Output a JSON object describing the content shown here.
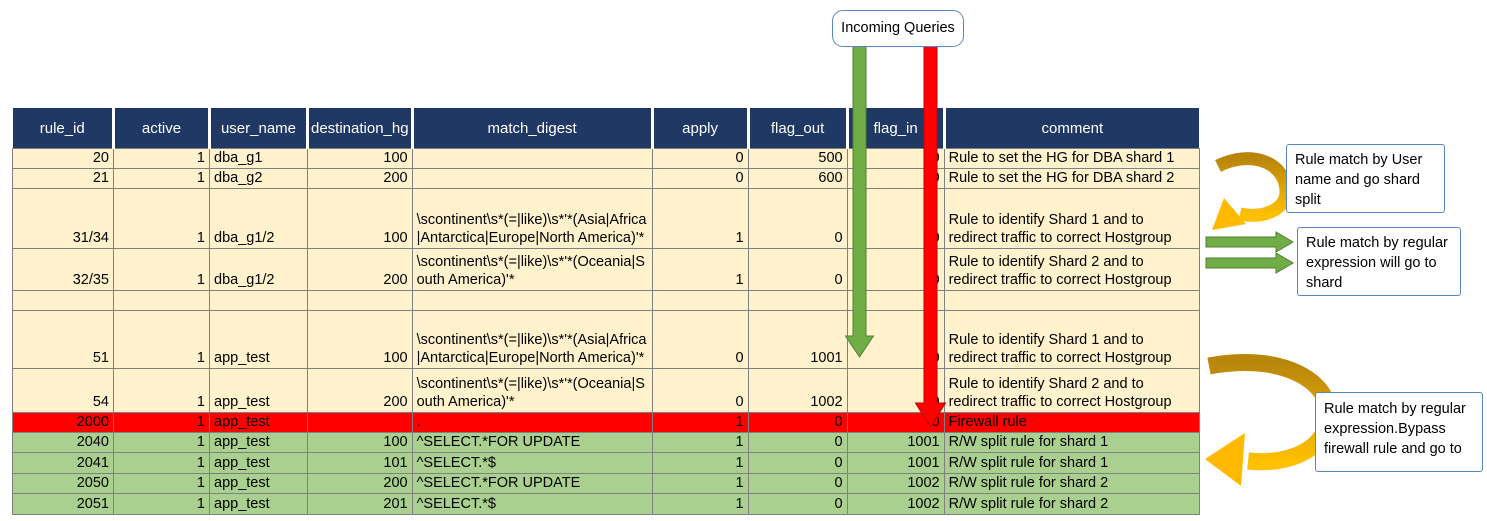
{
  "colors": {
    "header_bg": "#1F3864",
    "header_text": "#FFFFFF",
    "row_cream": "#FFF2CC",
    "row_red": "#FF0000",
    "row_green": "#A9D08E",
    "grid_line": "#808080",
    "arrow_green_fill": "#70AD47",
    "arrow_green_stroke": "#538135",
    "arrow_red_fill": "#FF0000",
    "arrow_red_stroke": "#C00000",
    "arrow_gold_dark": "#B8860B",
    "arrow_gold_bright": "#FFB900",
    "callout_border": "#5B86C5"
  },
  "annotations": {
    "incoming_queries": {
      "label": "Incoming Queries"
    },
    "callout_user_match": {
      "text": "Rule match by User name and go shard split"
    },
    "callout_regex_match": {
      "text": "Rule match by regular expression will go to shard"
    },
    "callout_regex_bypass": {
      "text": "Rule match by regular expression.Bypass firewall rule and go to"
    }
  },
  "table": {
    "columns": [
      "rule_id",
      "active",
      "user_name",
      "destination_hg",
      "match_digest",
      "apply",
      "flag_out",
      "flag_in",
      "comment"
    ],
    "rows": [
      {
        "style": "cream",
        "cells": [
          "20",
          "1",
          "dba_g1",
          "100",
          "",
          "0",
          "500",
          "0",
          "Rule to set the HG for DBA shard 1"
        ]
      },
      {
        "style": "cream",
        "cells": [
          "21",
          "1",
          "dba_g2",
          "200",
          "",
          "0",
          "600",
          "0",
          "Rule to set the HG for DBA shard 2"
        ]
      },
      {
        "style": "cream",
        "cells": [
          "31/34",
          "1",
          "dba_g1/2",
          "100",
          "\\scontinent\\s*(=|like)\\s*'*(Asia|Africa|Antarctica|Europe|North America)'*",
          "1",
          "0",
          "0",
          "Rule to identify Shard 1 and to redirect traffic to correct Hostgroup"
        ]
      },
      {
        "style": "cream",
        "cells": [
          "32/35",
          "1",
          "dba_g1/2",
          "200",
          "\\scontinent\\s*(=|like)\\s*'*(Oceania|South America)'*",
          "1",
          "0",
          "0",
          "Rule to identify Shard 2 and to redirect traffic to correct Hostgroup"
        ]
      },
      {
        "style": "cream",
        "cells": [
          "",
          "",
          "",
          "",
          "",
          "",
          "",
          "",
          ""
        ]
      },
      {
        "style": "cream",
        "cells": [
          "51",
          "1",
          "app_test",
          "100",
          "\\scontinent\\s*(=|like)\\s*'*(Asia|Africa|Antarctica|Europe|North America)'*",
          "0",
          "1001",
          "0",
          "Rule to identify Shard 1 and to redirect traffic to correct Hostgroup"
        ]
      },
      {
        "style": "cream",
        "cells": [
          "54",
          "1",
          "app_test",
          "200",
          "\\scontinent\\s*(=|like)\\s*'*(Oceania|South America)'*",
          "0",
          "1002",
          "0",
          "Rule to identify Shard 2 and to redirect traffic to correct Hostgroup"
        ]
      },
      {
        "style": "red",
        "cells": [
          "2000",
          "1",
          "app_test",
          "",
          ".",
          "1",
          "0",
          "0",
          "Firewall rule"
        ]
      },
      {
        "style": "green",
        "cells": [
          "2040",
          "1",
          "app_test",
          "100",
          "^SELECT.*FOR UPDATE",
          "1",
          "0",
          "1001",
          "R/W split rule for shard 1"
        ]
      },
      {
        "style": "green",
        "cells": [
          "2041",
          "1",
          "app_test",
          "101",
          "^SELECT.*$",
          "1",
          "0",
          "1001",
          "R/W split rule for shard 1"
        ]
      },
      {
        "style": "green",
        "cells": [
          "2050",
          "1",
          "app_test",
          "200",
          "^SELECT.*FOR UPDATE",
          "1",
          "0",
          "1002",
          "R/W split rule for shard 2"
        ]
      },
      {
        "style": "green",
        "cells": [
          "2051",
          "1",
          "app_test",
          "201",
          "^SELECT.*$",
          "1",
          "0",
          "1002",
          "R/W split rule for shard 2"
        ]
      }
    ],
    "column_alignments": [
      "num",
      "num",
      "txt",
      "num",
      "txt",
      "num",
      "num",
      "num",
      "txt"
    ]
  }
}
